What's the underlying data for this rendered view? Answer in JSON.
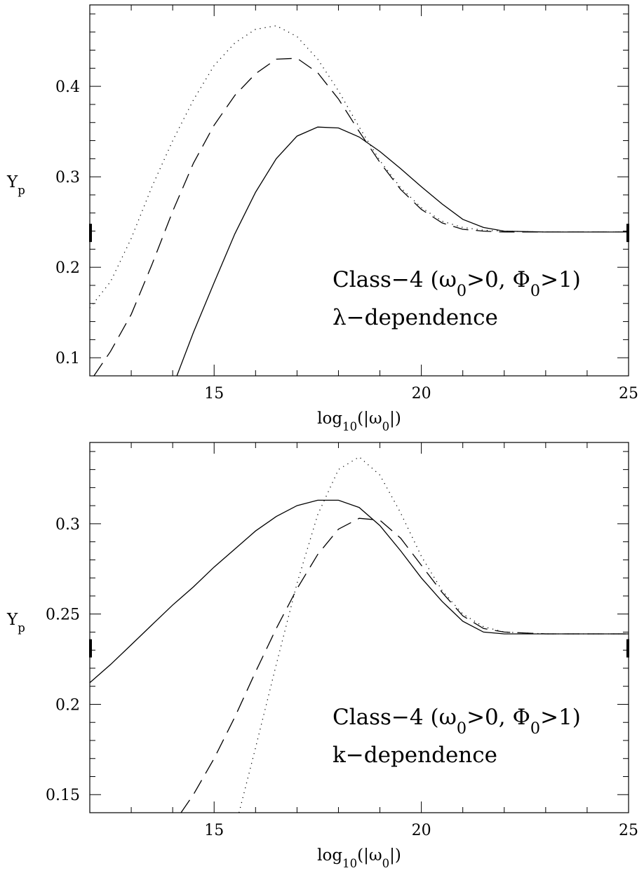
{
  "chart_data": [
    {
      "type": "line",
      "xlabel": "log10(|ω0|)",
      "ylabel": "Yp",
      "xlim": [
        12,
        25
      ],
      "ylim": [
        0.08,
        0.49
      ],
      "x_ticks": [
        "15",
        "20",
        "25"
      ],
      "y_ticks": [
        "0.1",
        "0.2",
        "0.3",
        "0.4"
      ],
      "y_tick_values": [
        0.1,
        0.2,
        0.3,
        0.4
      ],
      "grid": false,
      "annotation": [
        "Class−4 (ω0>0, Φ0>1)",
        "λ−dependence"
      ],
      "reference_marks": {
        "y": 0.238,
        "edges": [
          "left",
          "right"
        ]
      },
      "series": [
        {
          "style": "solid",
          "x": [
            14.1,
            14.5,
            15,
            15.5,
            16,
            16.5,
            17,
            17.5,
            18,
            18.5,
            19,
            19.5,
            20,
            20.5,
            21,
            21.5,
            22,
            23,
            24,
            25
          ],
          "y": [
            0.08,
            0.128,
            0.183,
            0.237,
            0.283,
            0.32,
            0.345,
            0.355,
            0.354,
            0.344,
            0.328,
            0.309,
            0.289,
            0.27,
            0.253,
            0.244,
            0.24,
            0.239,
            0.239,
            0.239
          ]
        },
        {
          "style": "dashed",
          "x": [
            12.1,
            12.5,
            13,
            13.5,
            14,
            14.5,
            15,
            15.5,
            16,
            16.5,
            17,
            17.5,
            18,
            18.5,
            19,
            19.5,
            20,
            20.5,
            21,
            21.5,
            22,
            23,
            24,
            25
          ],
          "y": [
            0.08,
            0.107,
            0.148,
            0.203,
            0.262,
            0.315,
            0.357,
            0.39,
            0.414,
            0.43,
            0.431,
            0.415,
            0.386,
            0.35,
            0.316,
            0.286,
            0.264,
            0.249,
            0.242,
            0.24,
            0.239,
            0.239,
            0.239,
            0.239
          ]
        },
        {
          "style": "dotted",
          "x": [
            12,
            12.5,
            13,
            13.5,
            14,
            14.5,
            15,
            15.5,
            16,
            16.5,
            17,
            17.5,
            18,
            18.5,
            19,
            19.5,
            20,
            20.5,
            21,
            21.5,
            22,
            23,
            24,
            25
          ],
          "y": [
            0.155,
            0.184,
            0.232,
            0.289,
            0.34,
            0.385,
            0.423,
            0.448,
            0.463,
            0.467,
            0.455,
            0.43,
            0.395,
            0.355,
            0.318,
            0.288,
            0.266,
            0.251,
            0.244,
            0.241,
            0.24,
            0.239,
            0.239,
            0.239
          ]
        }
      ]
    },
    {
      "type": "line",
      "xlabel": "log10(|ω0|)",
      "ylabel": "Yp",
      "xlim": [
        12,
        25
      ],
      "ylim": [
        0.14,
        0.345
      ],
      "x_ticks": [
        "15",
        "20",
        "25"
      ],
      "y_ticks": [
        "0.15",
        "0.2",
        "0.25",
        "0.3"
      ],
      "y_tick_values": [
        0.15,
        0.2,
        0.25,
        0.3
      ],
      "grid": false,
      "annotation": [
        "Class−4 (ω0>0, Φ0>1)",
        "k−dependence"
      ],
      "reference_marks": {
        "y": 0.231,
        "edges": [
          "left",
          "right"
        ]
      },
      "series": [
        {
          "style": "solid",
          "x": [
            12,
            12.5,
            13,
            13.5,
            14,
            14.5,
            15,
            15.5,
            16,
            16.5,
            17,
            17.5,
            18,
            18.5,
            19,
            19.5,
            20,
            20.5,
            21,
            21.5,
            22,
            23,
            24,
            25
          ],
          "y": [
            0.212,
            0.222,
            0.233,
            0.244,
            0.255,
            0.265,
            0.276,
            0.286,
            0.296,
            0.304,
            0.31,
            0.313,
            0.313,
            0.309,
            0.299,
            0.285,
            0.27,
            0.257,
            0.246,
            0.24,
            0.239,
            0.239,
            0.239,
            0.239
          ]
        },
        {
          "style": "dashed",
          "x": [
            14.2,
            14.5,
            15,
            15.5,
            16,
            16.5,
            17,
            17.5,
            18,
            18.5,
            19,
            19.5,
            20,
            20.5,
            21,
            21.5,
            22,
            23,
            24,
            25
          ],
          "y": [
            0.14,
            0.15,
            0.17,
            0.193,
            0.218,
            0.242,
            0.264,
            0.283,
            0.297,
            0.303,
            0.302,
            0.292,
            0.277,
            0.262,
            0.249,
            0.242,
            0.24,
            0.239,
            0.239,
            0.239
          ]
        },
        {
          "style": "dotted",
          "x": [
            15.6,
            16,
            16.5,
            17,
            17.5,
            18,
            18.5,
            19,
            19.5,
            20,
            20.5,
            21,
            21.5,
            22,
            23,
            24,
            25
          ],
          "y": [
            0.14,
            0.176,
            0.222,
            0.267,
            0.305,
            0.33,
            0.337,
            0.327,
            0.306,
            0.282,
            0.263,
            0.25,
            0.243,
            0.24,
            0.239,
            0.239,
            0.239
          ]
        }
      ]
    }
  ]
}
